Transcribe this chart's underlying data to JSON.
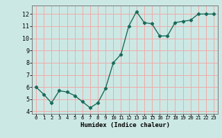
{
  "x": [
    0,
    1,
    2,
    3,
    4,
    5,
    6,
    7,
    8,
    9,
    10,
    11,
    12,
    13,
    14,
    15,
    16,
    17,
    18,
    19,
    20,
    21,
    22,
    23
  ],
  "y": [
    6.0,
    5.4,
    4.7,
    5.7,
    5.6,
    5.3,
    4.8,
    4.3,
    4.7,
    5.9,
    8.0,
    8.7,
    11.0,
    12.2,
    11.3,
    11.2,
    10.2,
    10.2,
    11.3,
    11.4,
    11.5,
    12.0,
    12.0,
    12.0
  ],
  "xlabel": "Humidex (Indice chaleur)",
  "line_color": "#1a6b5a",
  "bg_color": "#cce8e4",
  "grid_color": "#f0aaaa",
  "axis_color": "#555555",
  "ylim": [
    3.8,
    12.7
  ],
  "xlim": [
    -0.5,
    23.5
  ],
  "yticks": [
    4,
    5,
    6,
    7,
    8,
    9,
    10,
    11,
    12
  ],
  "xticks": [
    0,
    1,
    2,
    3,
    4,
    5,
    6,
    7,
    8,
    9,
    10,
    11,
    12,
    13,
    14,
    15,
    16,
    17,
    18,
    19,
    20,
    21,
    22,
    23
  ],
  "figsize": [
    3.2,
    2.0
  ],
  "dpi": 100
}
